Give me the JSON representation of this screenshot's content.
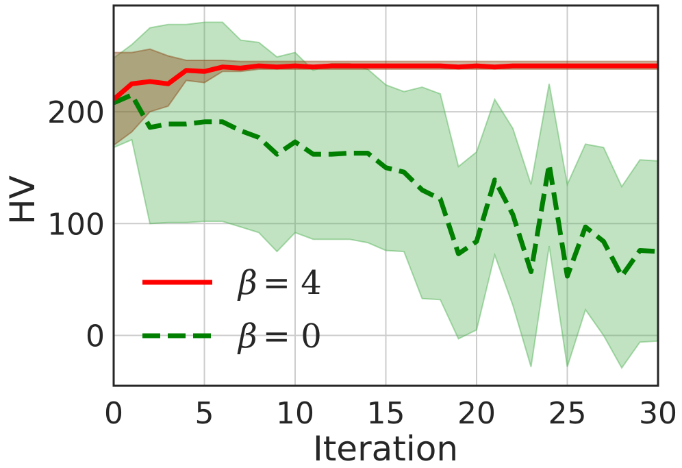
{
  "chart_data": {
    "type": "line",
    "title": "",
    "xlabel": "Iteration",
    "ylabel": "HV",
    "xlim": [
      0,
      30
    ],
    "ylim": [
      -45,
      295
    ],
    "xticks": [
      0,
      5,
      10,
      15,
      20,
      25,
      30
    ],
    "yticks": [
      0,
      100,
      200
    ],
    "grid": true,
    "legend_position": "lower-left",
    "series": [
      {
        "name": "β = 4",
        "legend_symbol": "β",
        "legend_value": "= 4",
        "color": "#ff0000",
        "band_color": "#8B4513",
        "line_style": "solid",
        "x": [
          0,
          1,
          2,
          3,
          4,
          5,
          6,
          7,
          8,
          9,
          10,
          11,
          12,
          13,
          14,
          15,
          16,
          17,
          18,
          19,
          20,
          21,
          22,
          23,
          24,
          25,
          26,
          27,
          28,
          29,
          30
        ],
        "y": [
          211,
          225,
          227,
          225,
          237,
          236,
          240,
          239,
          241,
          240,
          241,
          240,
          241,
          241,
          241,
          241,
          241,
          241,
          241,
          240,
          241,
          240,
          241,
          241,
          241,
          241,
          241,
          241,
          241,
          241,
          241
        ],
        "upper": [
          253,
          253,
          256,
          250,
          246,
          246,
          246,
          245,
          245,
          245,
          245,
          245,
          245,
          245,
          245,
          245,
          245,
          245,
          245,
          245,
          245,
          245,
          245,
          245,
          245,
          245,
          245,
          245,
          245,
          245,
          245
        ],
        "lower": [
          170,
          182,
          200,
          205,
          228,
          226,
          236,
          236,
          238,
          238,
          238,
          238,
          238,
          238,
          238,
          238,
          238,
          238,
          238,
          238,
          238,
          238,
          238,
          238,
          238,
          238,
          238,
          238,
          238,
          238,
          238
        ]
      },
      {
        "name": "β = 0",
        "legend_symbol": "β",
        "legend_value": "= 0",
        "color": "#007f00",
        "band_color": "#4caf50",
        "line_style": "dashed",
        "x": [
          0,
          1,
          2,
          3,
          4,
          5,
          6,
          7,
          8,
          9,
          10,
          11,
          12,
          13,
          14,
          15,
          16,
          17,
          18,
          19,
          20,
          21,
          22,
          23,
          24,
          25,
          26,
          27,
          28,
          29,
          30
        ],
        "y": [
          208,
          215,
          186,
          189,
          189,
          191,
          191,
          183,
          177,
          162,
          173,
          162,
          162,
          163,
          163,
          150,
          146,
          130,
          122,
          73,
          84,
          139,
          108,
          57,
          153,
          53,
          97,
          84,
          53,
          76,
          75
        ],
        "upper": [
          248,
          260,
          275,
          278,
          278,
          280,
          280,
          264,
          262,
          249,
          253,
          237,
          243,
          243,
          238,
          224,
          218,
          222,
          216,
          151,
          164,
          211,
          185,
          135,
          225,
          135,
          171,
          168,
          133,
          157,
          156
        ],
        "lower": [
          168,
          175,
          100,
          101,
          101,
          102,
          102,
          97,
          92,
          75,
          92,
          86,
          86,
          86,
          83,
          76,
          75,
          33,
          32,
          -3,
          5,
          72,
          27,
          -28,
          80,
          -28,
          23,
          0,
          -29,
          -6,
          -5
        ]
      }
    ]
  }
}
